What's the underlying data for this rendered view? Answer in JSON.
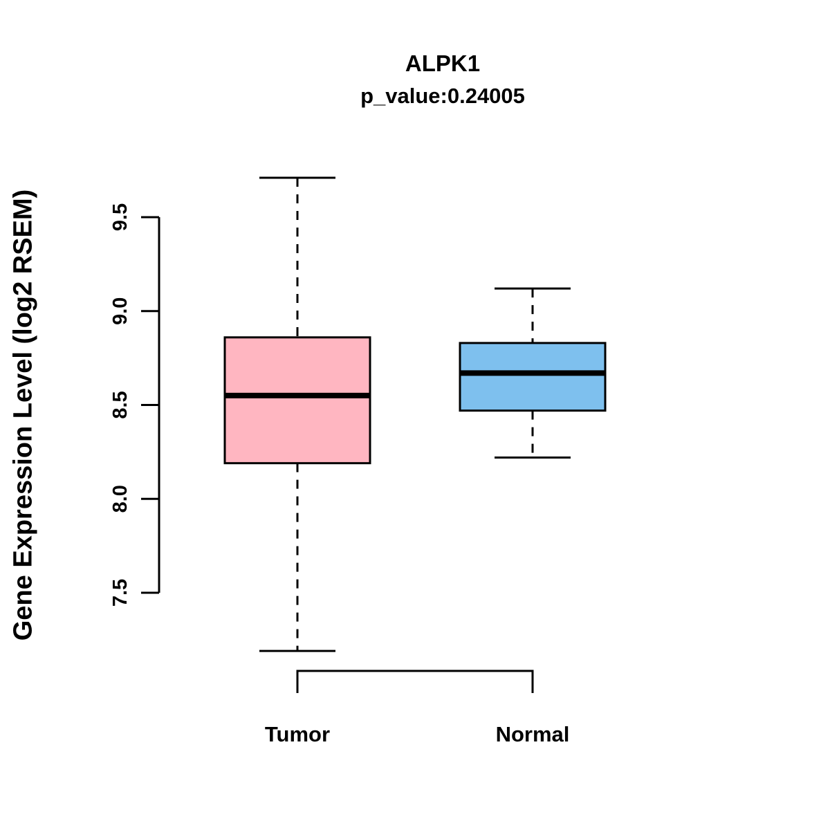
{
  "chart_data": {
    "type": "box",
    "title": "ALPK1",
    "subtitle": "p_value:0.24005",
    "ylabel": "Gene Expression Level (log2 RSEM)",
    "xlabel": "",
    "yticks": [
      7.5,
      8.0,
      8.5,
      9.0,
      9.5
    ],
    "ylim": [
      7.1,
      9.8
    ],
    "grid": false,
    "legend": "none",
    "categories": [
      "Tumor",
      "Normal"
    ],
    "groups": [
      {
        "label": "Tumor",
        "color": "#FFB6C1",
        "whisker_low": 7.19,
        "q1": 8.19,
        "median": 8.55,
        "q3": 8.86,
        "whisker_high": 9.71
      },
      {
        "label": "Normal",
        "color": "#7EC0EE",
        "whisker_low": 8.22,
        "q1": 8.47,
        "median": 8.67,
        "q3": 8.83,
        "whisker_high": 9.12
      }
    ],
    "axis_color": "#000000",
    "background_color": "#ffffff"
  }
}
